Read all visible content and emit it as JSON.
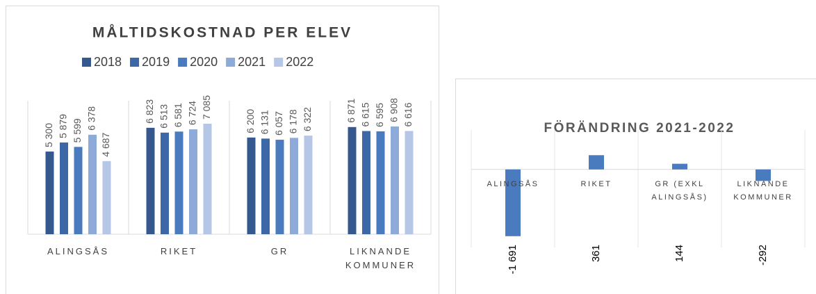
{
  "chart_data": [
    {
      "type": "bar",
      "title": "MÅLTIDSKOSTNAD PER ELEV",
      "categories": [
        "ALINGSÅS",
        "RIKET",
        "GR",
        "LIKNANDE KOMMUNER"
      ],
      "series": [
        {
          "name": "2018",
          "color": "#35598f",
          "values": [
            5300,
            6823,
            6200,
            6871
          ],
          "value_labels": [
            "5 300",
            "6 823",
            "6 200",
            "6 871"
          ]
        },
        {
          "name": "2019",
          "color": "#3d68a8",
          "values": [
            5879,
            6513,
            6131,
            6615
          ],
          "value_labels": [
            "5 879",
            "6 513",
            "6 131",
            "6 615"
          ]
        },
        {
          "name": "2020",
          "color": "#4a7bbf",
          "values": [
            5599,
            6581,
            6057,
            6595
          ],
          "value_labels": [
            "5 599",
            "6 581",
            "6 057",
            "6 595"
          ]
        },
        {
          "name": "2021",
          "color": "#8eaad8",
          "values": [
            6378,
            6724,
            6178,
            6908
          ],
          "value_labels": [
            "6 378",
            "6 724",
            "6 178",
            "6 908"
          ]
        },
        {
          "name": "2022",
          "color": "#b6c6e6",
          "values": [
            4687,
            7085,
            6322,
            6616
          ],
          "value_labels": [
            "4 687",
            "7 085",
            "6 322",
            "6 616"
          ]
        }
      ],
      "ylim": [
        0,
        9000
      ]
    },
    {
      "type": "bar",
      "title": "FÖRÄNDRING 2021-2022",
      "categories": [
        "ALINGSÅS",
        "RIKET",
        "GR (EXKL ALINGSÅS)",
        "LIKNANDE KOMMUNER"
      ],
      "values": [
        -1691,
        361,
        144,
        -292
      ],
      "value_labels": [
        "-1 691",
        "361",
        "144",
        "-292"
      ],
      "color": "#4a7bbf",
      "ylim": [
        -1800,
        1000
      ]
    }
  ]
}
